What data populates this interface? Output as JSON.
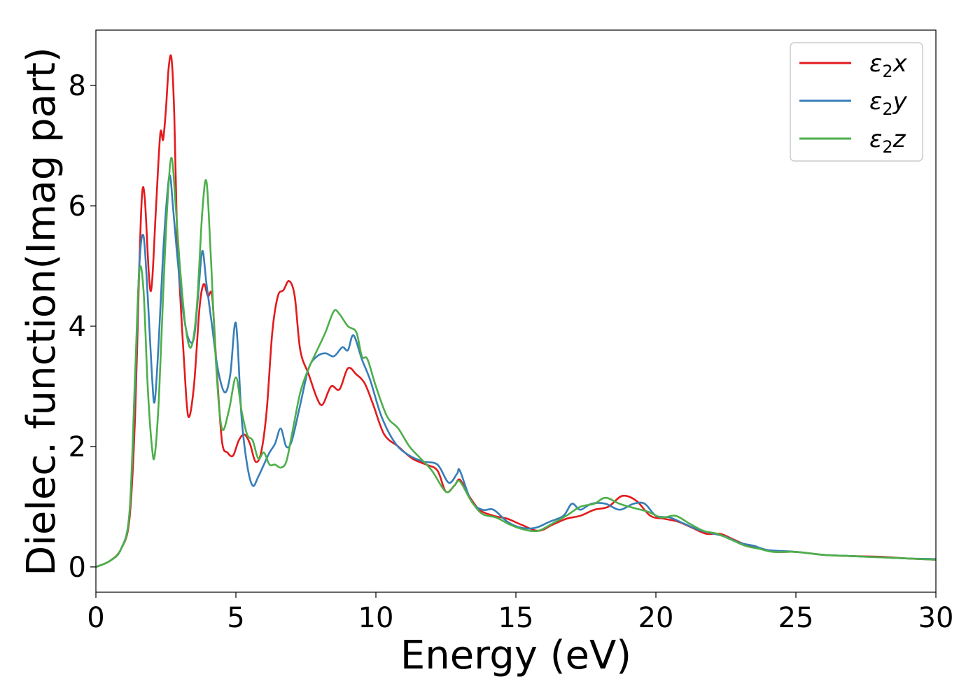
{
  "chart_data": {
    "type": "line",
    "title": "",
    "xlabel": "Energy (eV)",
    "ylabel": "Dielec. function(Imag part)",
    "xlim": [
      0,
      30
    ],
    "ylim": [
      -0.42,
      8.92
    ],
    "xticks": [
      0,
      5,
      10,
      15,
      20,
      25,
      30
    ],
    "xtick_labels": [
      "0",
      "5",
      "10",
      "15",
      "20",
      "25",
      "30"
    ],
    "yticks": [
      0,
      2,
      4,
      6,
      8
    ],
    "ytick_labels": [
      "0",
      "2",
      "4",
      "6",
      "8"
    ],
    "grid": false,
    "legend_position": "top-right",
    "series": [
      {
        "name": "ε₂x",
        "legend_base": "ε",
        "legend_sub": "2",
        "legend_suffix": "x",
        "color": "#e41a1c",
        "points": [
          [
            0,
            0
          ],
          [
            0.5,
            0.1
          ],
          [
            0.9,
            0.3
          ],
          [
            1.2,
            0.8
          ],
          [
            1.4,
            2.5
          ],
          [
            1.55,
            5.0
          ],
          [
            1.65,
            6.2
          ],
          [
            1.75,
            6.1
          ],
          [
            1.9,
            4.8
          ],
          [
            2.0,
            4.7
          ],
          [
            2.15,
            6.0
          ],
          [
            2.3,
            7.2
          ],
          [
            2.4,
            7.1
          ],
          [
            2.5,
            7.6
          ],
          [
            2.6,
            8.3
          ],
          [
            2.7,
            8.45
          ],
          [
            2.8,
            7.5
          ],
          [
            2.9,
            5.5
          ],
          [
            3.0,
            4.6
          ],
          [
            3.15,
            3.4
          ],
          [
            3.3,
            2.5
          ],
          [
            3.5,
            3.0
          ],
          [
            3.7,
            4.3
          ],
          [
            3.85,
            4.7
          ],
          [
            4.0,
            4.5
          ],
          [
            4.15,
            4.5
          ],
          [
            4.3,
            3.4
          ],
          [
            4.5,
            2.1
          ],
          [
            4.7,
            1.9
          ],
          [
            4.9,
            1.85
          ],
          [
            5.1,
            2.1
          ],
          [
            5.3,
            2.2
          ],
          [
            5.5,
            2.05
          ],
          [
            5.7,
            1.75
          ],
          [
            5.9,
            1.9
          ],
          [
            6.1,
            2.6
          ],
          [
            6.3,
            3.9
          ],
          [
            6.5,
            4.5
          ],
          [
            6.7,
            4.6
          ],
          [
            6.9,
            4.75
          ],
          [
            7.1,
            4.5
          ],
          [
            7.3,
            3.6
          ],
          [
            7.6,
            3.2
          ],
          [
            7.9,
            2.8
          ],
          [
            8.1,
            2.7
          ],
          [
            8.4,
            3.0
          ],
          [
            8.7,
            2.95
          ],
          [
            9.0,
            3.3
          ],
          [
            9.3,
            3.2
          ],
          [
            9.6,
            3.05
          ],
          [
            9.9,
            2.7
          ],
          [
            10.3,
            2.2
          ],
          [
            10.8,
            2.0
          ],
          [
            11.3,
            1.8
          ],
          [
            11.8,
            1.7
          ],
          [
            12.2,
            1.6
          ],
          [
            12.5,
            1.25
          ],
          [
            12.8,
            1.35
          ],
          [
            13.0,
            1.45
          ],
          [
            13.3,
            1.2
          ],
          [
            13.7,
            0.95
          ],
          [
            14.2,
            0.85
          ],
          [
            14.7,
            0.8
          ],
          [
            15.2,
            0.7
          ],
          [
            15.8,
            0.6
          ],
          [
            16.3,
            0.7
          ],
          [
            16.8,
            0.8
          ],
          [
            17.3,
            0.85
          ],
          [
            17.8,
            0.95
          ],
          [
            18.3,
            1.0
          ],
          [
            18.8,
            1.18
          ],
          [
            19.3,
            1.1
          ],
          [
            19.8,
            0.85
          ],
          [
            20.3,
            0.8
          ],
          [
            20.8,
            0.75
          ],
          [
            21.3,
            0.65
          ],
          [
            21.8,
            0.55
          ],
          [
            22.3,
            0.55
          ],
          [
            22.8,
            0.45
          ],
          [
            23.3,
            0.35
          ],
          [
            23.8,
            0.3
          ],
          [
            24.3,
            0.25
          ],
          [
            25.0,
            0.25
          ],
          [
            26.0,
            0.2
          ],
          [
            27.0,
            0.18
          ],
          [
            28.0,
            0.17
          ],
          [
            29.0,
            0.14
          ],
          [
            30.0,
            0.12
          ]
        ]
      },
      {
        "name": "ε₂y",
        "legend_base": "ε",
        "legend_sub": "2",
        "legend_suffix": "y",
        "color": "#377eb8",
        "points": [
          [
            0,
            0
          ],
          [
            0.5,
            0.1
          ],
          [
            0.9,
            0.3
          ],
          [
            1.2,
            0.9
          ],
          [
            1.4,
            3.0
          ],
          [
            1.55,
            5.0
          ],
          [
            1.7,
            5.5
          ],
          [
            1.85,
            4.5
          ],
          [
            2.0,
            3.2
          ],
          [
            2.1,
            2.75
          ],
          [
            2.25,
            3.8
          ],
          [
            2.4,
            5.2
          ],
          [
            2.55,
            6.2
          ],
          [
            2.65,
            6.5
          ],
          [
            2.75,
            6.0
          ],
          [
            2.9,
            5.2
          ],
          [
            3.1,
            4.3
          ],
          [
            3.3,
            3.8
          ],
          [
            3.5,
            3.8
          ],
          [
            3.65,
            4.5
          ],
          [
            3.8,
            5.25
          ],
          [
            3.95,
            4.7
          ],
          [
            4.15,
            4.0
          ],
          [
            4.35,
            3.3
          ],
          [
            4.6,
            2.9
          ],
          [
            4.8,
            3.2
          ],
          [
            5.0,
            4.05
          ],
          [
            5.2,
            2.5
          ],
          [
            5.4,
            1.7
          ],
          [
            5.6,
            1.35
          ],
          [
            5.8,
            1.5
          ],
          [
            6.0,
            1.7
          ],
          [
            6.2,
            1.9
          ],
          [
            6.4,
            2.05
          ],
          [
            6.6,
            2.3
          ],
          [
            6.8,
            2.0
          ],
          [
            7.0,
            2.1
          ],
          [
            7.3,
            2.7
          ],
          [
            7.6,
            3.3
          ],
          [
            7.9,
            3.5
          ],
          [
            8.2,
            3.55
          ],
          [
            8.5,
            3.5
          ],
          [
            8.8,
            3.65
          ],
          [
            9.0,
            3.6
          ],
          [
            9.2,
            3.85
          ],
          [
            9.5,
            3.45
          ],
          [
            9.8,
            3.1
          ],
          [
            10.2,
            2.5
          ],
          [
            10.7,
            2.05
          ],
          [
            11.2,
            1.85
          ],
          [
            11.7,
            1.75
          ],
          [
            12.2,
            1.7
          ],
          [
            12.6,
            1.4
          ],
          [
            12.9,
            1.55
          ],
          [
            13.0,
            1.6
          ],
          [
            13.4,
            1.1
          ],
          [
            13.8,
            0.95
          ],
          [
            14.2,
            0.95
          ],
          [
            14.7,
            0.75
          ],
          [
            15.2,
            0.65
          ],
          [
            15.7,
            0.65
          ],
          [
            16.2,
            0.75
          ],
          [
            16.7,
            0.85
          ],
          [
            17.0,
            1.05
          ],
          [
            17.3,
            0.95
          ],
          [
            17.7,
            1.05
          ],
          [
            18.2,
            1.05
          ],
          [
            18.7,
            0.95
          ],
          [
            19.2,
            1.05
          ],
          [
            19.6,
            1.05
          ],
          [
            20.0,
            0.85
          ],
          [
            20.5,
            0.82
          ],
          [
            21.0,
            0.72
          ],
          [
            21.5,
            0.62
          ],
          [
            22.0,
            0.56
          ],
          [
            22.5,
            0.5
          ],
          [
            23.0,
            0.4
          ],
          [
            23.5,
            0.35
          ],
          [
            24.0,
            0.28
          ],
          [
            25.0,
            0.25
          ],
          [
            26.0,
            0.2
          ],
          [
            27.0,
            0.18
          ],
          [
            28.0,
            0.16
          ],
          [
            29.0,
            0.14
          ],
          [
            30.0,
            0.13
          ]
        ]
      },
      {
        "name": "ε₂z",
        "legend_base": "ε",
        "legend_sub": "2",
        "legend_suffix": "z",
        "color": "#4daf4a",
        "points": [
          [
            0,
            0
          ],
          [
            0.5,
            0.1
          ],
          [
            0.9,
            0.3
          ],
          [
            1.2,
            0.9
          ],
          [
            1.4,
            3.2
          ],
          [
            1.55,
            4.9
          ],
          [
            1.7,
            4.6
          ],
          [
            1.85,
            3.0
          ],
          [
            2.0,
            2.0
          ],
          [
            2.1,
            1.85
          ],
          [
            2.25,
            2.8
          ],
          [
            2.4,
            4.5
          ],
          [
            2.55,
            6.0
          ],
          [
            2.7,
            6.8
          ],
          [
            2.85,
            6.0
          ],
          [
            3.0,
            5.0
          ],
          [
            3.2,
            4.0
          ],
          [
            3.4,
            3.65
          ],
          [
            3.6,
            4.3
          ],
          [
            3.8,
            5.9
          ],
          [
            3.95,
            6.4
          ],
          [
            4.1,
            5.2
          ],
          [
            4.3,
            3.3
          ],
          [
            4.5,
            2.3
          ],
          [
            4.75,
            2.6
          ],
          [
            5.0,
            3.15
          ],
          [
            5.2,
            2.6
          ],
          [
            5.4,
            2.2
          ],
          [
            5.6,
            2.1
          ],
          [
            5.8,
            1.8
          ],
          [
            6.0,
            1.9
          ],
          [
            6.2,
            1.7
          ],
          [
            6.4,
            1.7
          ],
          [
            6.6,
            1.65
          ],
          [
            6.8,
            1.75
          ],
          [
            7.0,
            2.2
          ],
          [
            7.3,
            2.9
          ],
          [
            7.6,
            3.3
          ],
          [
            7.9,
            3.6
          ],
          [
            8.2,
            3.9
          ],
          [
            8.5,
            4.25
          ],
          [
            8.7,
            4.2
          ],
          [
            9.0,
            4.0
          ],
          [
            9.3,
            3.9
          ],
          [
            9.5,
            3.5
          ],
          [
            9.7,
            3.45
          ],
          [
            10.0,
            3.0
          ],
          [
            10.4,
            2.5
          ],
          [
            10.8,
            2.3
          ],
          [
            11.2,
            2.0
          ],
          [
            11.6,
            1.8
          ],
          [
            12.0,
            1.6
          ],
          [
            12.5,
            1.25
          ],
          [
            12.8,
            1.35
          ],
          [
            13.0,
            1.42
          ],
          [
            13.4,
            1.1
          ],
          [
            13.8,
            0.88
          ],
          [
            14.3,
            0.82
          ],
          [
            14.8,
            0.7
          ],
          [
            15.3,
            0.62
          ],
          [
            15.8,
            0.6
          ],
          [
            16.3,
            0.72
          ],
          [
            16.8,
            0.85
          ],
          [
            17.3,
            1.0
          ],
          [
            17.8,
            1.05
          ],
          [
            18.2,
            1.15
          ],
          [
            18.7,
            1.05
          ],
          [
            19.2,
            0.98
          ],
          [
            19.7,
            0.92
          ],
          [
            20.2,
            0.82
          ],
          [
            20.7,
            0.85
          ],
          [
            21.2,
            0.72
          ],
          [
            21.7,
            0.6
          ],
          [
            22.2,
            0.55
          ],
          [
            22.7,
            0.45
          ],
          [
            23.2,
            0.35
          ],
          [
            23.7,
            0.3
          ],
          [
            24.2,
            0.25
          ],
          [
            25.0,
            0.25
          ],
          [
            26.0,
            0.2
          ],
          [
            27.0,
            0.18
          ],
          [
            28.0,
            0.16
          ],
          [
            29.0,
            0.14
          ],
          [
            30.0,
            0.12
          ]
        ]
      }
    ]
  }
}
